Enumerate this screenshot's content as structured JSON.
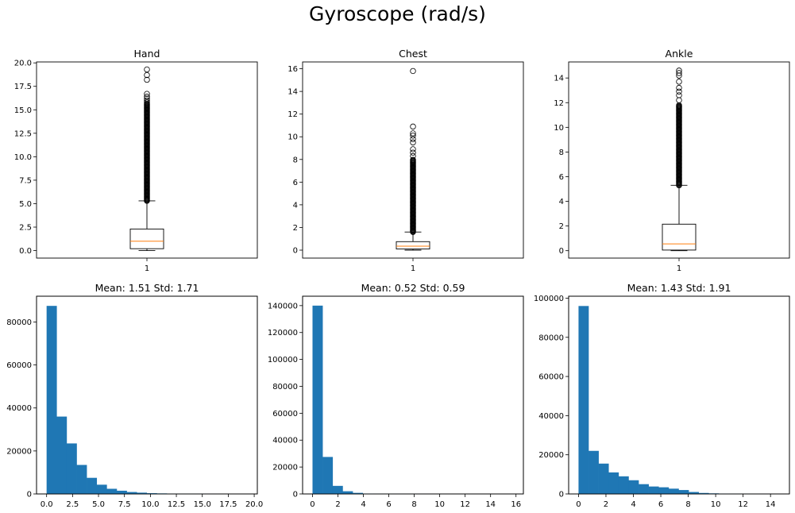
{
  "figure": {
    "suptitle": "Gyroscope (rad/s)"
  },
  "chart_data": [
    {
      "type": "box",
      "title": "Hand",
      "xticks": [
        "1"
      ],
      "ylim": [
        -0.8,
        20.1
      ],
      "yticks": [
        0.0,
        2.5,
        5.0,
        7.5,
        10.0,
        12.5,
        15.0,
        17.5,
        20.0
      ],
      "ytick_labels": [
        "0.0",
        "2.5",
        "5.0",
        "7.5",
        "10.0",
        "12.5",
        "15.0",
        "17.5",
        "20.0"
      ],
      "box": {
        "whisker_low": 0.0,
        "q1": 0.2,
        "median": 1.0,
        "q3": 2.3,
        "whisker_high": 5.3
      },
      "flier_range": [
        5.3,
        15.7
      ],
      "fliers_extra": [
        15.8,
        16.0,
        16.2,
        16.4,
        16.7,
        18.2,
        18.7,
        19.3
      ]
    },
    {
      "type": "box",
      "title": "Chest",
      "xticks": [
        "1"
      ],
      "ylim": [
        -0.7,
        16.6
      ],
      "yticks": [
        0,
        2,
        4,
        6,
        8,
        10,
        12,
        14,
        16
      ],
      "ytick_labels": [
        "0",
        "2",
        "4",
        "6",
        "8",
        "10",
        "12",
        "14",
        "16"
      ],
      "box": {
        "whisker_low": 0.0,
        "q1": 0.1,
        "median": 0.35,
        "q3": 0.75,
        "whisker_high": 1.6
      },
      "flier_range": [
        1.6,
        8.0
      ],
      "fliers_extra": [
        8.3,
        8.6,
        8.9,
        9.5,
        9.8,
        10.1,
        10.3,
        10.9,
        15.8
      ]
    },
    {
      "type": "box",
      "title": "Ankle",
      "xticks": [
        "1"
      ],
      "ylim": [
        -0.6,
        15.3
      ],
      "yticks": [
        0,
        2,
        4,
        6,
        8,
        10,
        12,
        14
      ],
      "ytick_labels": [
        "0",
        "2",
        "4",
        "6",
        "8",
        "10",
        "12",
        "14"
      ],
      "box": {
        "whisker_low": 0.0,
        "q1": 0.05,
        "median": 0.55,
        "q3": 2.15,
        "whisker_high": 5.3
      },
      "flier_range": [
        5.3,
        11.8
      ],
      "fliers_extra": [
        12.2,
        12.6,
        12.9,
        13.2,
        13.7,
        14.2,
        14.4,
        14.6
      ]
    },
    {
      "type": "histogram",
      "title": "Mean: 1.51  Std: 1.71",
      "xlim": [
        -0.97,
        20.3
      ],
      "xticks": [
        0.0,
        2.5,
        5.0,
        7.5,
        10.0,
        12.5,
        15.0,
        17.5,
        20.0
      ],
      "xtick_labels": [
        "0.0",
        "2.5",
        "5.0",
        "7.5",
        "10.0",
        "12.5",
        "15.0",
        "17.5",
        "20.0"
      ],
      "ylim": [
        0,
        92000
      ],
      "yticks": [
        0,
        20000,
        40000,
        60000,
        80000
      ],
      "ytick_labels": [
        "0",
        "20000",
        "40000",
        "60000",
        "80000"
      ],
      "bin_start": 0,
      "bin_width": 0.965,
      "values": [
        87500,
        36000,
        23500,
        13500,
        7500,
        4300,
        2400,
        1500,
        900,
        600,
        350,
        250,
        100,
        60,
        40,
        20,
        10,
        5,
        3,
        3
      ]
    },
    {
      "type": "histogram",
      "title": "Mean: 0.52  Std: 0.59",
      "xlim": [
        -0.78,
        16.58
      ],
      "xticks": [
        0,
        2,
        4,
        6,
        8,
        10,
        12,
        14,
        16
      ],
      "xtick_labels": [
        "0",
        "2",
        "4",
        "6",
        "8",
        "10",
        "12",
        "14",
        "16"
      ],
      "ylim": [
        0,
        147000
      ],
      "yticks": [
        0,
        20000,
        40000,
        60000,
        80000,
        100000,
        120000,
        140000
      ],
      "ytick_labels": [
        "0",
        "20000",
        "40000",
        "60000",
        "80000",
        "100000",
        "120000",
        "140000"
      ],
      "bin_start": 0,
      "bin_width": 0.79,
      "values": [
        140000,
        27500,
        6000,
        2000,
        800,
        300,
        150,
        80,
        40,
        20,
        15,
        10,
        5,
        3,
        2,
        1,
        1,
        1,
        1,
        1
      ]
    },
    {
      "type": "histogram",
      "title": "Mean: 1.43  Std: 1.91",
      "xlim": [
        -0.72,
        15.38
      ],
      "xticks": [
        0,
        2,
        4,
        6,
        8,
        10,
        12,
        14
      ],
      "xtick_labels": [
        "0",
        "2",
        "4",
        "6",
        "8",
        "10",
        "12",
        "14"
      ],
      "ylim": [
        0,
        101000
      ],
      "yticks": [
        0,
        20000,
        40000,
        60000,
        80000,
        100000
      ],
      "ytick_labels": [
        "0",
        "20000",
        "40000",
        "60000",
        "80000",
        "100000"
      ],
      "bin_start": 0,
      "bin_width": 0.73,
      "values": [
        96000,
        22000,
        15500,
        11000,
        9000,
        7000,
        5000,
        3800,
        3400,
        2700,
        2000,
        1000,
        500,
        300,
        150,
        80,
        40,
        20,
        10,
        5
      ]
    }
  ],
  "colors": {
    "bar": "#1f77b4",
    "median": "#ff7f0e",
    "axis": "#000000"
  }
}
